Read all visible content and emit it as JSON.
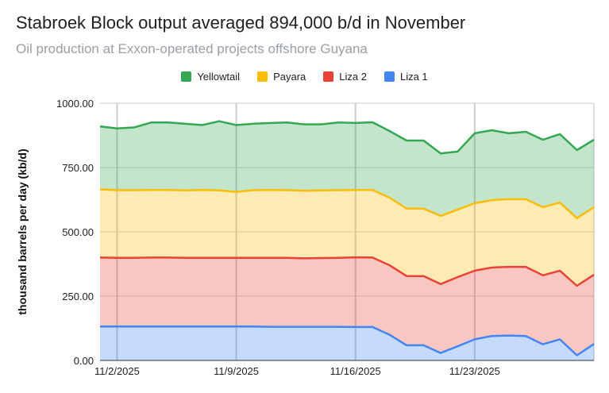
{
  "chart_data": {
    "type": "area",
    "stacked": true,
    "title": "Stabroek Block output averaged 894,000 b/d in November",
    "subtitle": "Oil production at Exxon-operated projects offshore Guyana",
    "xlabel": "",
    "ylabel": "thousand barrels per day (kb/d)",
    "ylim": [
      0,
      1000
    ],
    "yticks": [
      "0.00",
      "250.00",
      "500.00",
      "750.00",
      "1000.00"
    ],
    "xticks": [
      {
        "day": 2,
        "label": "11/2/2025"
      },
      {
        "day": 9,
        "label": "11/9/2025"
      },
      {
        "day": 16,
        "label": "11/16/2025"
      },
      {
        "day": 23,
        "label": "11/23/2025"
      }
    ],
    "x": [
      1,
      2,
      3,
      4,
      5,
      6,
      7,
      8,
      9,
      10,
      11,
      12,
      13,
      14,
      15,
      16,
      17,
      18,
      19,
      20,
      21,
      22,
      23,
      24,
      25,
      26,
      27,
      28,
      29,
      30
    ],
    "legend_position": "top",
    "grid": true,
    "series": [
      {
        "name": "Liza 1",
        "color": "#4285f4",
        "values": [
          132,
          132,
          132,
          132,
          132,
          132,
          132,
          132,
          132,
          132,
          131,
          131,
          131,
          131,
          131,
          130,
          130,
          100,
          59,
          59,
          29,
          55,
          82,
          95,
          97,
          95,
          63,
          82,
          20,
          64
        ]
      },
      {
        "name": "Liza 2",
        "color": "#ea4335",
        "values": [
          268,
          267,
          267,
          268,
          268,
          267,
          267,
          267,
          267,
          267,
          268,
          268,
          266,
          267,
          268,
          271,
          270,
          270,
          269,
          269,
          268,
          269,
          267,
          266,
          267,
          269,
          268,
          267,
          270,
          269
        ]
      },
      {
        "name": "Payara",
        "color": "#fbbc04",
        "values": [
          265,
          263,
          263,
          263,
          263,
          262,
          264,
          262,
          256,
          263,
          264,
          263,
          263,
          263,
          263,
          262,
          263,
          263,
          262,
          262,
          265,
          262,
          262,
          262,
          263,
          263,
          265,
          265,
          263,
          263
        ]
      },
      {
        "name": "Yellowtail",
        "color": "#34a853",
        "values": [
          245,
          240,
          244,
          262,
          262,
          259,
          252,
          269,
          260,
          258,
          260,
          263,
          258,
          257,
          263,
          260,
          263,
          259,
          265,
          265,
          243,
          226,
          272,
          272,
          256,
          262,
          262,
          266,
          265,
          262
        ]
      }
    ],
    "legend_order": [
      "Yellowtail",
      "Payara",
      "Liza 2",
      "Liza 1"
    ]
  }
}
